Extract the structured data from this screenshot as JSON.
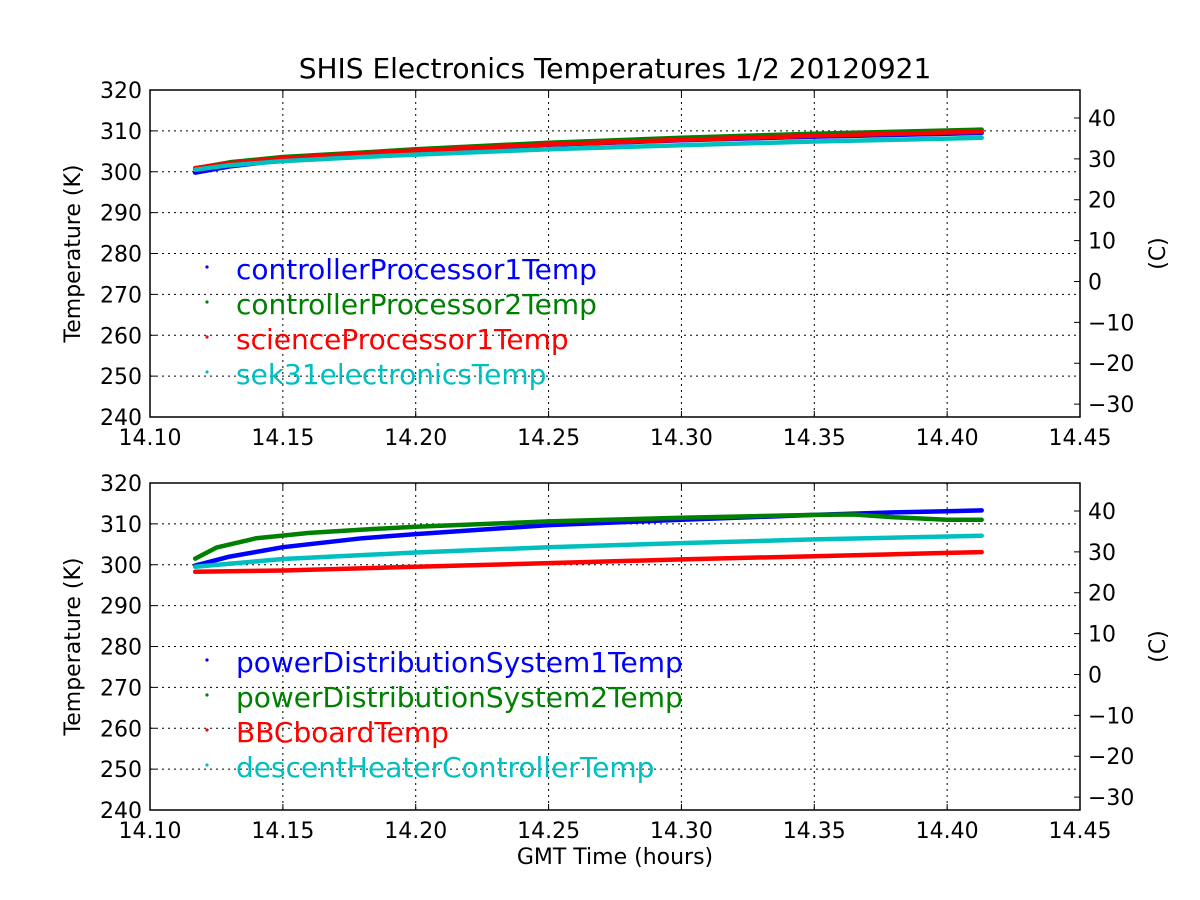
{
  "chart_data": [
    {
      "type": "scatter",
      "title": "SHIS Electronics Temperatures 1/2 20120921",
      "xlabel": "",
      "ylabel": "Temperature (K)",
      "ylabel_right": "(C)",
      "xlim": [
        14.1,
        14.45
      ],
      "ylim": [
        240,
        320
      ],
      "xticks": [
        "14.10",
        "14.15",
        "14.20",
        "14.25",
        "14.30",
        "14.35",
        "14.40",
        "14.45"
      ],
      "yticks": [
        "240",
        "250",
        "260",
        "270",
        "280",
        "290",
        "300",
        "310",
        "320"
      ],
      "yticks_right": [
        "−30",
        "−20",
        "−10",
        "0",
        "10",
        "20",
        "30",
        "40"
      ],
      "grid": true,
      "legend_position": "center-left",
      "series": [
        {
          "name": "controllerProcessor1Temp",
          "color": "#0000ff",
          "x": [
            14.117,
            14.13,
            14.15,
            14.18,
            14.2,
            14.25,
            14.3,
            14.35,
            14.4,
            14.413
          ],
          "y": [
            299.8,
            301.3,
            302.8,
            304.2,
            305.0,
            306.6,
            307.7,
            308.6,
            309.3,
            309.5
          ]
        },
        {
          "name": "controllerProcessor2Temp",
          "color": "#008000",
          "x": [
            14.117,
            14.13,
            14.15,
            14.18,
            14.2,
            14.25,
            14.3,
            14.35,
            14.4,
            14.413
          ],
          "y": [
            300.8,
            302.3,
            303.6,
            304.7,
            305.5,
            307.1,
            308.3,
            309.3,
            310.1,
            310.3
          ]
        },
        {
          "name": "scienceProcessor1Temp",
          "color": "#ff0000",
          "x": [
            14.117,
            14.13,
            14.15,
            14.18,
            14.2,
            14.25,
            14.3,
            14.35,
            14.4,
            14.413
          ],
          "y": [
            300.9,
            302.1,
            303.3,
            304.5,
            305.2,
            306.7,
            307.8,
            308.8,
            309.6,
            309.8
          ]
        },
        {
          "name": "sek31electronicsTemp",
          "color": "#00bfbf",
          "x": [
            14.117,
            14.13,
            14.15,
            14.18,
            14.2,
            14.25,
            14.3,
            14.35,
            14.4,
            14.413
          ],
          "y": [
            300.5,
            301.6,
            302.6,
            303.6,
            304.2,
            305.5,
            306.5,
            307.4,
            308.1,
            308.3
          ]
        }
      ]
    },
    {
      "type": "scatter",
      "title": "",
      "xlabel": "GMT Time (hours)",
      "ylabel": "Temperature (K)",
      "ylabel_right": "(C)",
      "xlim": [
        14.1,
        14.45
      ],
      "ylim": [
        240,
        320
      ],
      "xticks": [
        "14.10",
        "14.15",
        "14.20",
        "14.25",
        "14.30",
        "14.35",
        "14.40",
        "14.45"
      ],
      "yticks": [
        "240",
        "250",
        "260",
        "270",
        "280",
        "290",
        "300",
        "310",
        "320"
      ],
      "yticks_right": [
        "−30",
        "−20",
        "−10",
        "0",
        "10",
        "20",
        "30",
        "40"
      ],
      "grid": true,
      "legend_position": "center-left",
      "series": [
        {
          "name": "powerDistributionSystem1Temp",
          "color": "#0000ff",
          "x": [
            14.117,
            14.13,
            14.15,
            14.18,
            14.2,
            14.25,
            14.3,
            14.35,
            14.38,
            14.4,
            14.413
          ],
          "y": [
            299.8,
            302.0,
            304.3,
            306.5,
            307.5,
            309.7,
            311.0,
            312.2,
            312.8,
            313.1,
            313.3
          ]
        },
        {
          "name": "powerDistributionSystem2Temp",
          "color": "#008000",
          "x": [
            14.117,
            14.125,
            14.14,
            14.16,
            14.18,
            14.2,
            14.25,
            14.3,
            14.35,
            14.365,
            14.38,
            14.4,
            14.413
          ],
          "y": [
            301.5,
            304.2,
            306.5,
            307.8,
            308.6,
            309.3,
            310.6,
            311.5,
            312.2,
            312.3,
            311.6,
            311.0,
            311.0
          ]
        },
        {
          "name": "BBCboardTemp",
          "color": "#ff0000",
          "x": [
            14.117,
            14.15,
            14.2,
            14.25,
            14.3,
            14.35,
            14.4,
            14.413
          ],
          "y": [
            298.3,
            298.6,
            299.5,
            300.4,
            301.3,
            302.1,
            302.9,
            303.1
          ]
        },
        {
          "name": "descentHeaterControllerTemp",
          "color": "#00bfbf",
          "x": [
            14.117,
            14.15,
            14.2,
            14.25,
            14.3,
            14.35,
            14.4,
            14.413
          ],
          "y": [
            299.5,
            301.4,
            303.0,
            304.3,
            305.3,
            306.2,
            306.9,
            307.1
          ]
        }
      ]
    }
  ]
}
